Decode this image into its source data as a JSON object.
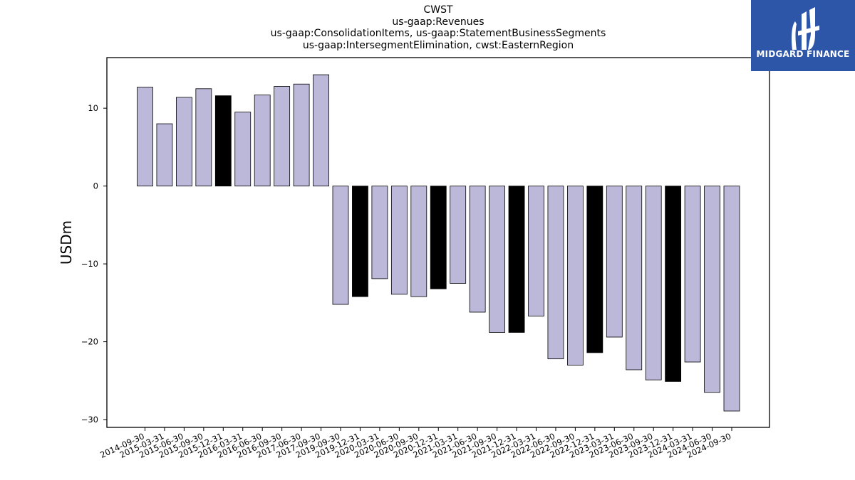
{
  "title_lines": [
    "CWST",
    "us-gaap:Revenues",
    "us-gaap:ConsolidationItems, us-gaap:StatementBusinessSegments",
    "us-gaap:IntersegmentElimination, cwst:EasternRegion"
  ],
  "logo": {
    "text": "MIDGARD FINANCE",
    "bg": "#2d55a8"
  },
  "chart_data": {
    "type": "bar",
    "ylabel": "USDm",
    "xlabel": "",
    "ylim": [
      -31,
      16.5
    ],
    "yticks": [
      10,
      0,
      -10,
      -20,
      -30
    ],
    "ytick_labels": [
      "10",
      "0",
      "−10",
      "−20",
      "−30"
    ],
    "colors": {
      "default": "#bcb8da",
      "highlight": "#000000"
    },
    "categories": [
      "2014-09-30",
      "2015-03-31",
      "2015-06-30",
      "2015-09-30",
      "2015-12-31",
      "2016-03-31",
      "2016-06-30",
      "2016-09-30",
      "2017-06-30",
      "2017-09-30",
      "2019-09-30",
      "2019-12-31",
      "2020-03-31",
      "2020-06-30",
      "2020-09-30",
      "2020-12-31",
      "2021-03-31",
      "2021-06-30",
      "2021-09-30",
      "2021-12-31",
      "2022-03-31",
      "2022-06-30",
      "2022-09-30",
      "2022-12-31",
      "2023-03-31",
      "2023-06-30",
      "2023-09-30",
      "2023-12-31",
      "2024-03-31",
      "2024-06-30",
      "2024-09-30"
    ],
    "values": [
      12.7,
      8.0,
      11.4,
      12.5,
      11.6,
      9.5,
      11.7,
      12.8,
      13.1,
      14.3,
      -15.2,
      -14.2,
      -11.9,
      -13.9,
      -14.2,
      -13.2,
      -12.5,
      -16.2,
      -18.8,
      -18.8,
      -16.7,
      -22.2,
      -23.0,
      -21.4,
      -19.4,
      -23.6,
      -24.9,
      -25.1,
      -22.6,
      -26.5,
      -28.9
    ],
    "highlight": [
      false,
      false,
      false,
      false,
      true,
      false,
      false,
      false,
      false,
      false,
      false,
      true,
      false,
      false,
      false,
      true,
      false,
      false,
      false,
      true,
      false,
      false,
      false,
      true,
      false,
      false,
      false,
      true,
      false,
      false,
      false
    ],
    "grid": false,
    "legend": "none"
  }
}
